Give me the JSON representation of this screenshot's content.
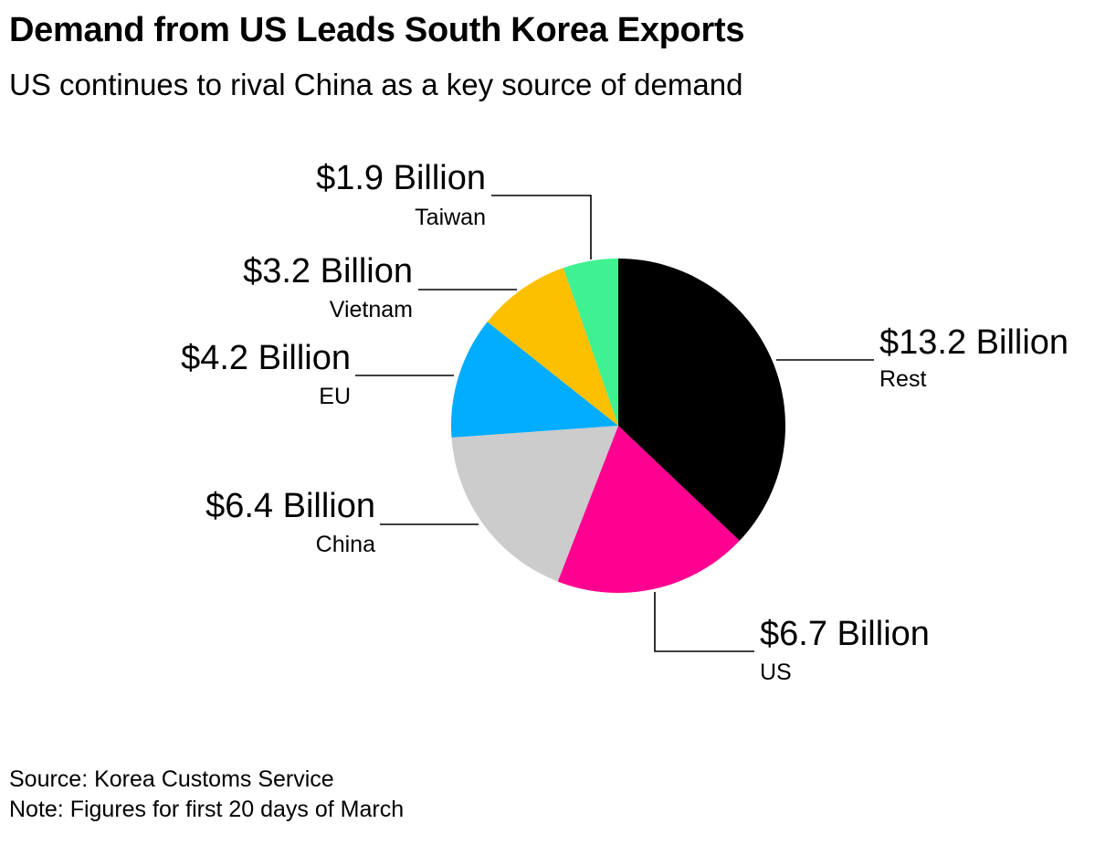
{
  "header": {
    "title": "Demand from US Leads South Korea Exports",
    "subtitle": "US continues to rival China as a key source of demand"
  },
  "footer": {
    "source": "Source: Korea Customs Service",
    "note": "Note: Figures for first 20 days of March"
  },
  "chart_data": {
    "type": "pie",
    "title": "Demand from US Leads South Korea Exports",
    "subtitle": "US continues to rival China as a key source of demand",
    "unit": "Billion USD",
    "slices": [
      {
        "name": "Rest",
        "value": 13.2,
        "value_label": "$13.2 Billion",
        "color": "#000000"
      },
      {
        "name": "US",
        "value": 6.7,
        "value_label": "$6.7 Billion",
        "color": "#ff0090"
      },
      {
        "name": "China",
        "value": 6.4,
        "value_label": "$6.4 Billion",
        "color": "#cccccc"
      },
      {
        "name": "EU",
        "value": 4.2,
        "value_label": "$4.2 Billion",
        "color": "#00adff"
      },
      {
        "name": "Vietnam",
        "value": 3.2,
        "value_label": "$3.2 Billion",
        "color": "#fcc000"
      },
      {
        "name": "Taiwan",
        "value": 1.9,
        "value_label": "$1.9 Billion",
        "color": "#3ff190"
      }
    ],
    "start_angle": "12 o'clock",
    "direction": "clockwise",
    "legend": "none"
  }
}
